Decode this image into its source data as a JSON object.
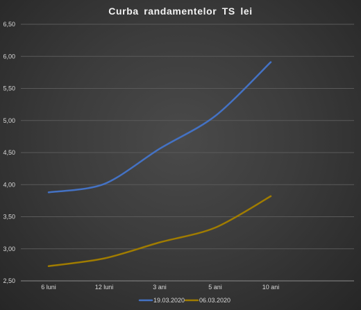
{
  "chart_data": {
    "type": "line",
    "title": "Curba randamentelor TS lei",
    "xlabel": "",
    "ylabel": "",
    "categories": [
      "6 luni",
      "12 luni",
      "3 ani",
      "5 ani",
      "10 ani"
    ],
    "ylim": [
      2.5,
      6.5
    ],
    "ytick_labels": [
      "2,50",
      "3,00",
      "3,50",
      "4,00",
      "4,50",
      "5,00",
      "5,50",
      "6,00",
      "6,50"
    ],
    "grid": true,
    "legend_position": "bottom",
    "series": [
      {
        "name": "19.03.2020",
        "color": "#4472c4",
        "values": [
          3.88,
          4.01,
          4.56,
          5.07,
          5.91
        ]
      },
      {
        "name": "06.03.2020",
        "color": "#a07c00",
        "values": [
          2.73,
          2.85,
          3.1,
          3.33,
          3.82
        ]
      }
    ]
  }
}
